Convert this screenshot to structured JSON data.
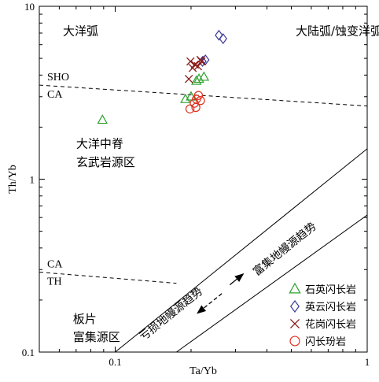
{
  "chart_data": {
    "type": "scatter",
    "xlabel": "Ta/Yb",
    "ylabel": "Th/Yb",
    "xscale": "log",
    "yscale": "log",
    "xlim": [
      0.05,
      1
    ],
    "ylim": [
      0.1,
      10
    ],
    "grid": false,
    "legend": "bottom-right",
    "x_ticks": [
      {
        "value": 0.1,
        "label": "0.1"
      },
      {
        "value": 1,
        "label": "1"
      }
    ],
    "y_ticks": [
      {
        "value": 0.1,
        "label": "0.1"
      },
      {
        "value": 1,
        "label": "1"
      },
      {
        "value": 10,
        "label": "10"
      }
    ],
    "series": [
      {
        "name": "石英闪长岩",
        "marker": "triangle",
        "color": "#2ca02c",
        "points": [
          [
            0.089,
            2.2
          ],
          [
            0.19,
            2.9
          ],
          [
            0.2,
            3.0
          ],
          [
            0.21,
            3.7
          ],
          [
            0.215,
            3.8
          ],
          [
            0.225,
            3.9
          ]
        ]
      },
      {
        "name": "英云闪长岩",
        "marker": "diamond",
        "color": "#3a3a9a",
        "points": [
          [
            0.258,
            6.8
          ],
          [
            0.268,
            6.5
          ],
          [
            0.228,
            4.9
          ],
          [
            0.222,
            4.8
          ]
        ]
      },
      {
        "name": "花岗闪长岩",
        "marker": "x",
        "color": "#8b1a1a",
        "points": [
          [
            0.199,
            4.8
          ],
          [
            0.207,
            4.6
          ],
          [
            0.213,
            4.5
          ],
          [
            0.22,
            4.8
          ],
          [
            0.203,
            4.4
          ],
          [
            0.218,
            4.9
          ],
          [
            0.196,
            3.8
          ]
        ]
      },
      {
        "name": "闪长玢岩",
        "marker": "circle",
        "color": "#e0301e",
        "points": [
          [
            0.198,
            2.55
          ],
          [
            0.206,
            2.75
          ],
          [
            0.21,
            2.9
          ],
          [
            0.214,
            3.05
          ],
          [
            0.218,
            2.85
          ],
          [
            0.209,
            2.6
          ]
        ]
      }
    ],
    "boundaries": {
      "sho_ca": {
        "points": [
          [
            0.05,
            3.5
          ],
          [
            1,
            2.65
          ]
        ],
        "style": "dashed",
        "upper_label": "SHO",
        "lower_label": "CA"
      },
      "ca_th": {
        "points": [
          [
            0.05,
            0.29
          ],
          [
            0.175,
            0.25
          ]
        ],
        "style": "dashed",
        "upper_label": "CA",
        "lower_label": "TH"
      },
      "array_upper": {
        "points": [
          [
            0.1,
            0.1
          ],
          [
            1,
            1.5
          ]
        ],
        "style": "solid"
      },
      "array_lower": {
        "points": [
          [
            0.175,
            0.1
          ],
          [
            1,
            0.62
          ]
        ],
        "style": "solid"
      }
    },
    "region_labels": [
      {
        "text": "大洋弧",
        "x": 0.062,
        "y": 7.2
      },
      {
        "text": "大陆弧/蚀变洋弧",
        "x": 0.52,
        "y": 7.2
      },
      {
        "text": "大洋中脊",
        "x": 0.07,
        "y": 1.6
      },
      {
        "text": "玄武岩源区",
        "x": 0.07,
        "y": 1.25
      },
      {
        "text": "板片",
        "x": 0.068,
        "y": 0.155
      },
      {
        "text": "富集源区",
        "x": 0.068,
        "y": 0.122
      }
    ],
    "annotations": [
      {
        "text": "富集地幔源趋势",
        "direction": "up-right",
        "x": 0.48,
        "y": 0.38
      },
      {
        "text": "亏损地幔源趋势",
        "direction": "down-left",
        "x": 0.17,
        "y": 0.16
      }
    ]
  }
}
